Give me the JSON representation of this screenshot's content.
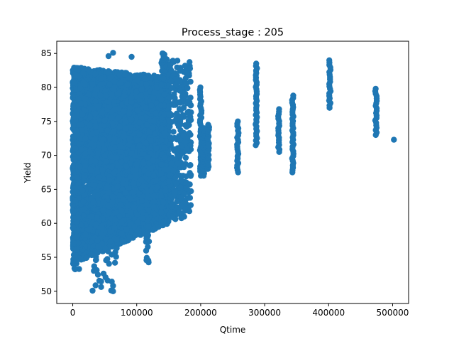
{
  "chart_data": {
    "type": "scatter",
    "title": "Process_stage : 205",
    "xlabel": "Qtime",
    "ylabel": "Yield",
    "xlim": [
      -25000,
      525000
    ],
    "ylim": [
      48.2,
      86.8
    ],
    "xticks": [
      0,
      100000,
      200000,
      300000,
      400000,
      500000
    ],
    "yticks": [
      50,
      55,
      60,
      65,
      70,
      75,
      80,
      85
    ],
    "grid": false,
    "legend": "none",
    "marker_color": "#1f77b4",
    "dense_cluster": {
      "x_range": [
        0,
        150000
      ],
      "y_range": [
        51,
        85
      ],
      "count": 5200
    },
    "sparse_regions": [
      {
        "x": [
          0,
          10000
        ],
        "y": [
          53,
          62
        ],
        "count": 60
      },
      {
        "x": [
          30000,
          70000
        ],
        "y": [
          50,
          58
        ],
        "count": 40
      },
      {
        "x": [
          110000,
          120000
        ],
        "y": [
          54,
          62
        ],
        "count": 25
      },
      {
        "x": [
          138000,
          147000
        ],
        "y": [
          64,
          85
        ],
        "count": 120
      },
      {
        "x": [
          150000,
          185000
        ],
        "y": [
          60.5,
          84
        ],
        "count": 320
      }
    ],
    "stacks": [
      {
        "x": 200000,
        "y_min": 67,
        "y_max": 80
      },
      {
        "x": 205000,
        "y_min": 67,
        "y_max": 74
      },
      {
        "x": 212000,
        "y_min": 68,
        "y_max": 74.5
      },
      {
        "x": 258000,
        "y_min": 67.5,
        "y_max": 75
      },
      {
        "x": 287000,
        "y_min": 71.5,
        "y_max": 83.5
      },
      {
        "x": 322000,
        "y_min": 70.5,
        "y_max": 76.8
      },
      {
        "x": 344000,
        "y_min": 67.5,
        "y_max": 78.8
      },
      {
        "x": 402000,
        "y_min": 77,
        "y_max": 84
      },
      {
        "x": 474000,
        "y_min": 73,
        "y_max": 79.8
      }
    ],
    "isolated_points": [
      {
        "x": 502000,
        "y": 72.3
      },
      {
        "x": 63000,
        "y": 85.1
      },
      {
        "x": 92000,
        "y": 84.5
      },
      {
        "x": 56000,
        "y": 84.6
      },
      {
        "x": 33000,
        "y": 53.0
      },
      {
        "x": 63000,
        "y": 50.0
      },
      {
        "x": 63000,
        "y": 50.8
      }
    ]
  }
}
